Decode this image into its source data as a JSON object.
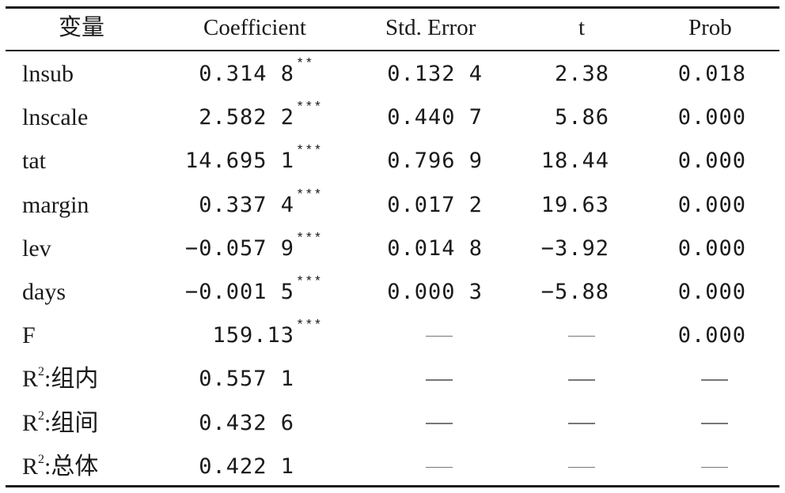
{
  "table": {
    "headers": {
      "var": "变量",
      "coef": "Coefficient",
      "se": "Std. Error",
      "t": "t",
      "prob": "Prob"
    },
    "rows": [
      {
        "var": "lnsub",
        "var_sup": "",
        "var_suffix": "",
        "coef": "0.314 8",
        "stars": "**",
        "se": "0.132 4",
        "t": "2.38",
        "prob": "0.018"
      },
      {
        "var": "lnscale",
        "var_sup": "",
        "var_suffix": "",
        "coef": "2.582 2",
        "stars": "***",
        "se": "0.440 7",
        "t": "5.86",
        "prob": "0.000"
      },
      {
        "var": "tat",
        "var_sup": "",
        "var_suffix": "",
        "coef": "14.695 1",
        "stars": "***",
        "se": "0.796 9",
        "t": "18.44",
        "prob": "0.000"
      },
      {
        "var": "margin",
        "var_sup": "",
        "var_suffix": "",
        "coef": "0.337 4",
        "stars": "***",
        "se": "0.017 2",
        "t": "19.63",
        "prob": "0.000"
      },
      {
        "var": "lev",
        "var_sup": "",
        "var_suffix": "",
        "coef": "−0.057 9",
        "stars": "***",
        "se": "0.014 8",
        "t": "−3.92",
        "prob": "0.000"
      },
      {
        "var": "days",
        "var_sup": "",
        "var_suffix": "",
        "coef": "−0.001 5",
        "stars": "***",
        "se": "0.000 3",
        "t": "−5.88",
        "prob": "0.000"
      },
      {
        "var": "F",
        "var_sup": "",
        "var_suffix": "",
        "coef": "159.13",
        "stars": "***",
        "se": "—",
        "t": "—",
        "prob": "0.000"
      },
      {
        "var": "R",
        "var_sup": "2",
        "var_suffix": ":组内",
        "coef": "0.557 1",
        "stars": "",
        "se": "—",
        "t": "—",
        "prob": "—"
      },
      {
        "var": "R",
        "var_sup": "2",
        "var_suffix": ":组间",
        "coef": "0.432 6",
        "stars": "",
        "se": "—",
        "t": "—",
        "prob": "—"
      },
      {
        "var": "R",
        "var_sup": "2",
        "var_suffix": ":总体",
        "coef": "0.422 1",
        "stars": "",
        "se": "—",
        "t": "—",
        "prob": "—"
      }
    ]
  }
}
